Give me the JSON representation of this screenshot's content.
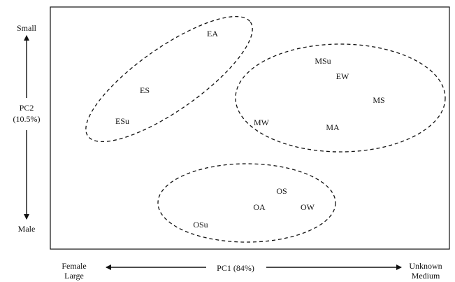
{
  "y_axis": {
    "top_label": "Small",
    "axis_label_line1": "PC2",
    "axis_label_line2": "(10.5%)",
    "bottom_label": "Male"
  },
  "x_axis": {
    "left_label_line1": "Female",
    "left_label_line2": "Large",
    "axis_label": "PC1 (84%)",
    "right_label_line1": "Unknown",
    "right_label_line2": "Medium"
  },
  "points": {
    "ea": "EA",
    "es": "ES",
    "esu": "ESu",
    "msu": "MSu",
    "ew": "EW",
    "ms": "MS",
    "mw": "MW",
    "ma": "MA",
    "os": "OS",
    "oa": "OA",
    "ow": "OW",
    "osu": "OSu"
  },
  "colors": {
    "ink": "#111111",
    "background": "#ffffff"
  }
}
